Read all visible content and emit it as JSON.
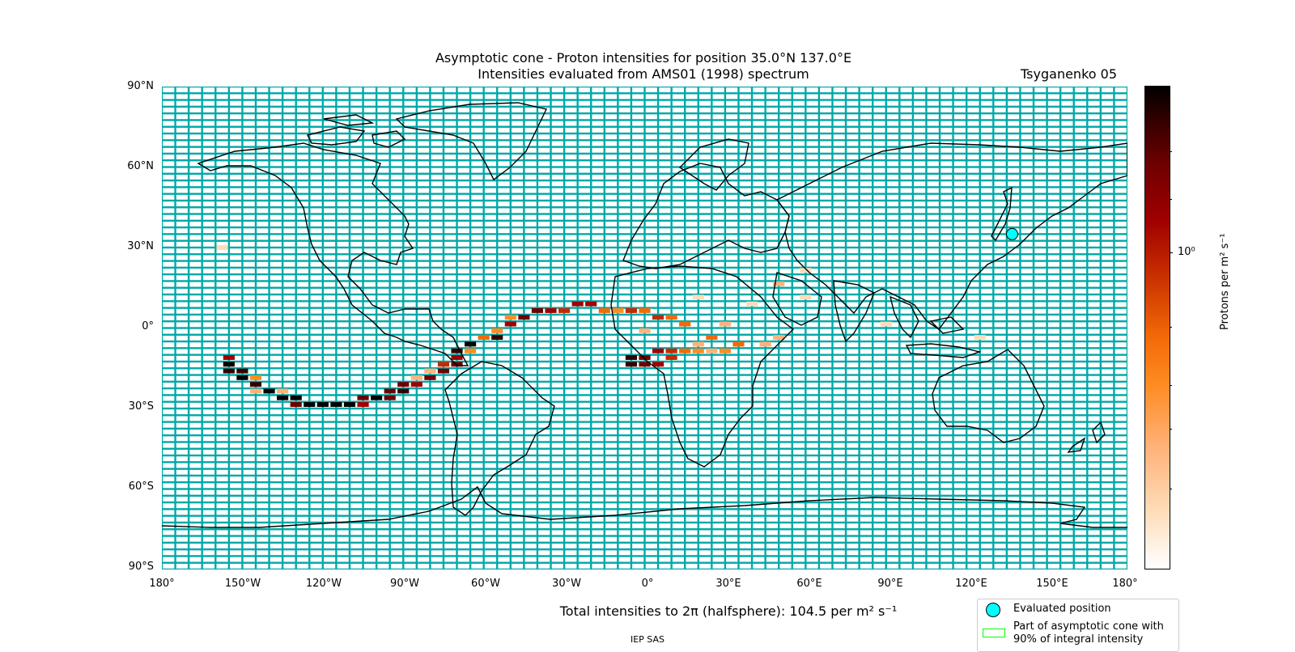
{
  "title_line1": "Asymptotic cone - Proton intensities for position 35.0°N 137.0°E",
  "title_line2": "Intensities evaluated from AMS01 (1998) spectrum",
  "model": "Tsyganenko 05",
  "lat_labels": [
    "90°N",
    "60°N",
    "30°N",
    "0°",
    "30°S",
    "60°S",
    "90°S"
  ],
  "lon_labels": [
    "180°",
    "150°W",
    "120°W",
    "90°W",
    "60°W",
    "30°W",
    "0°",
    "30°E",
    "60°E",
    "90°E",
    "120°E",
    "150°E",
    "180°"
  ],
  "colorbar": {
    "label": "Protons per m² s⁻¹",
    "tick_label": "10⁰",
    "scale": "log",
    "colors": [
      "#ffffff",
      "#fedcb8",
      "#ffb27a",
      "#ff8c23",
      "#f26a07",
      "#c42a00",
      "#a10000",
      "#6e0000",
      "#330000",
      "#000000"
    ]
  },
  "total_text": "Total intensities to 2π (halfsphere): 104.5 per m² s⁻¹",
  "credit": "IEP SAS",
  "legend": {
    "evaluated": "Evaluated position",
    "cone": "Part of asymptotic cone with 90% of integral intensity"
  },
  "colors": {
    "grid_cell_outline": "#00a8a8",
    "evaluated_marker": "#00ffff",
    "cone_outline": "#00ff00"
  },
  "evaluated_position": {
    "lat": 35.0,
    "lon": 137.0
  },
  "map_data": {
    "cell_size_deg": {
      "lon": 5,
      "lat": 2.5
    },
    "cells": [
      {
        "lon": -157.5,
        "lat": 30,
        "level": 1
      },
      {
        "lon": -155,
        "lat": -11,
        "level": 6
      },
      {
        "lon": -155,
        "lat": -13.5,
        "level": 9
      },
      {
        "lon": -155,
        "lat": -16,
        "level": 8
      },
      {
        "lon": -150,
        "lat": -16,
        "level": 8
      },
      {
        "lon": -150,
        "lat": -18.5,
        "level": 9
      },
      {
        "lon": -145,
        "lat": -18.5,
        "level": 3
      },
      {
        "lon": -145,
        "lat": -21,
        "level": 8
      },
      {
        "lon": -145,
        "lat": -23.5,
        "level": 2
      },
      {
        "lon": -140,
        "lat": -23.5,
        "level": 9
      },
      {
        "lon": -135,
        "lat": -23.5,
        "level": 2
      },
      {
        "lon": -135,
        "lat": -26,
        "level": 9
      },
      {
        "lon": -130,
        "lat": -26,
        "level": 9
      },
      {
        "lon": -130,
        "lat": -28.5,
        "level": 7
      },
      {
        "lon": -125,
        "lat": -28.5,
        "level": 9
      },
      {
        "lon": -120,
        "lat": -28.5,
        "level": 9
      },
      {
        "lon": -115,
        "lat": -28.5,
        "level": 9
      },
      {
        "lon": -110,
        "lat": -28.5,
        "level": 9
      },
      {
        "lon": -105,
        "lat": -28.5,
        "level": 6
      },
      {
        "lon": -105,
        "lat": -26,
        "level": 7
      },
      {
        "lon": -100,
        "lat": -26,
        "level": 9
      },
      {
        "lon": -95,
        "lat": -26,
        "level": 7
      },
      {
        "lon": -95,
        "lat": -23.5,
        "level": 7
      },
      {
        "lon": -90,
        "lat": -23.5,
        "level": 8
      },
      {
        "lon": -90,
        "lat": -21,
        "level": 7
      },
      {
        "lon": -85,
        "lat": -21,
        "level": 6
      },
      {
        "lon": -85,
        "lat": -18.5,
        "level": 2
      },
      {
        "lon": -80,
        "lat": -18.5,
        "level": 7
      },
      {
        "lon": -80,
        "lat": -16,
        "level": 2
      },
      {
        "lon": -75,
        "lat": -16,
        "level": 7
      },
      {
        "lon": -75,
        "lat": -13.5,
        "level": 5
      },
      {
        "lon": -70,
        "lat": -13.5,
        "level": 7
      },
      {
        "lon": -70,
        "lat": -11,
        "level": 6
      },
      {
        "lon": -70,
        "lat": -8.5,
        "level": 8
      },
      {
        "lon": -65,
        "lat": -8.5,
        "level": 3
      },
      {
        "lon": -65,
        "lat": -6,
        "level": 9
      },
      {
        "lon": -60,
        "lat": -3.5,
        "level": 4
      },
      {
        "lon": -55,
        "lat": -1,
        "level": 3
      },
      {
        "lon": -55,
        "lat": -3.5,
        "level": 8
      },
      {
        "lon": -50,
        "lat": 1.5,
        "level": 6
      },
      {
        "lon": -50,
        "lat": 4,
        "level": 3
      },
      {
        "lon": -45,
        "lat": 4,
        "level": 7
      },
      {
        "lon": -40,
        "lat": 6.5,
        "level": 7
      },
      {
        "lon": -35,
        "lat": 6.5,
        "level": 6
      },
      {
        "lon": -30,
        "lat": 6.5,
        "level": 5
      },
      {
        "lon": -25,
        "lat": 9,
        "level": 6
      },
      {
        "lon": -20,
        "lat": 9,
        "level": 6
      },
      {
        "lon": -15,
        "lat": 6.5,
        "level": 4
      },
      {
        "lon": -10,
        "lat": 6.5,
        "level": 3
      },
      {
        "lon": -5,
        "lat": 6.5,
        "level": 5
      },
      {
        "lon": 0,
        "lat": 6.5,
        "level": 4
      },
      {
        "lon": 5,
        "lat": 4,
        "level": 5
      },
      {
        "lon": 10,
        "lat": 4,
        "level": 4
      },
      {
        "lon": 15,
        "lat": 1.5,
        "level": 4
      },
      {
        "lon": 0,
        "lat": -1,
        "level": 2
      },
      {
        "lon": 5,
        "lat": -8.5,
        "level": 6
      },
      {
        "lon": 10,
        "lat": -8.5,
        "level": 5
      },
      {
        "lon": 15,
        "lat": -8.5,
        "level": 4
      },
      {
        "lon": 20,
        "lat": -8.5,
        "level": 3
      },
      {
        "lon": 25,
        "lat": -8.5,
        "level": 2
      },
      {
        "lon": 30,
        "lat": -8.5,
        "level": 3
      },
      {
        "lon": -5,
        "lat": -11,
        "level": 8
      },
      {
        "lon": 0,
        "lat": -11,
        "level": 7
      },
      {
        "lon": -5,
        "lat": -13.5,
        "level": 8
      },
      {
        "lon": 0,
        "lat": -13.5,
        "level": 7
      },
      {
        "lon": 5,
        "lat": -13.5,
        "level": 6
      },
      {
        "lon": 10,
        "lat": -11,
        "level": 5
      },
      {
        "lon": 20,
        "lat": -6,
        "level": 2
      },
      {
        "lon": 25,
        "lat": -3.5,
        "level": 4
      },
      {
        "lon": 30,
        "lat": 1.5,
        "level": 2
      },
      {
        "lon": 35,
        "lat": -6,
        "level": 4
      },
      {
        "lon": 45,
        "lat": -6,
        "level": 2
      },
      {
        "lon": 50,
        "lat": -3.5,
        "level": 2
      },
      {
        "lon": 20,
        "lat": 11.5,
        "level": 1
      },
      {
        "lon": 40,
        "lat": 9,
        "level": 1
      },
      {
        "lon": 50,
        "lat": 16.5,
        "level": 2
      },
      {
        "lon": 60,
        "lat": 21.5,
        "level": 1
      },
      {
        "lon": 60,
        "lat": 11.5,
        "level": 1
      },
      {
        "lon": 90,
        "lat": 1.5,
        "level": 1
      },
      {
        "lon": 125,
        "lat": -3.5,
        "level": 1
      }
    ]
  }
}
